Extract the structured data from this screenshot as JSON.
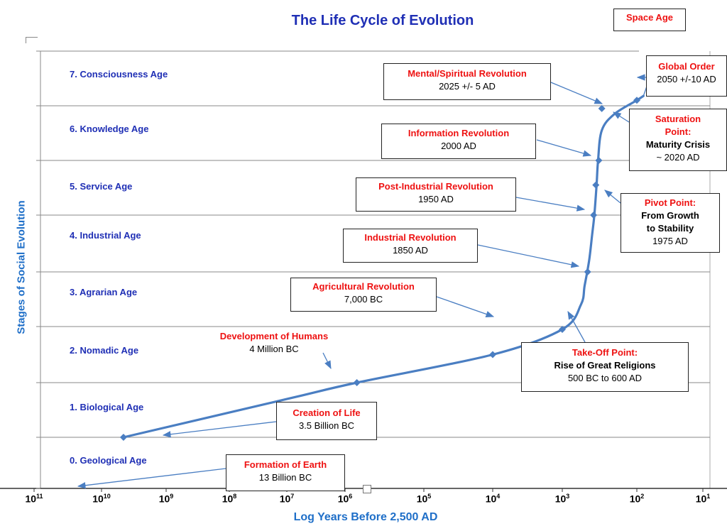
{
  "chart_data": {
    "type": "line",
    "title": "The Life Cycle of Evolution",
    "xlabel": "Log Years Before 2,500 AD",
    "ylabel": "Stages of Social Evolution",
    "x_scale": "log, reversed",
    "xlim_log10": [
      11,
      1
    ],
    "ylim": [
      0,
      7.6
    ],
    "x_ticks": [
      {
        "base": "10",
        "exp": "11"
      },
      {
        "base": "10",
        "exp": "10"
      },
      {
        "base": "10",
        "exp": "9"
      },
      {
        "base": "10",
        "exp": "8"
      },
      {
        "base": "10",
        "exp": "7"
      },
      {
        "base": "10",
        "exp": "6"
      },
      {
        "base": "10",
        "exp": "5"
      },
      {
        "base": "10",
        "exp": "4"
      },
      {
        "base": "10",
        "exp": "3"
      },
      {
        "base": "10",
        "exp": "2"
      },
      {
        "base": "10",
        "exp": "1"
      }
    ],
    "stages": [
      "0. Geological Age",
      "1. Biological Age",
      "2. Nomadic Age",
      "3. Agrarian Age",
      "4. Industrial Age",
      "5. Service Age",
      "6. Knowledge Age",
      "7. Consciousness Age"
    ],
    "curve_log_x": [
      9.66,
      7.0,
      5.85,
      4.0,
      3.0,
      2.75,
      2.7,
      2.64,
      2.6,
      2.57,
      2.54,
      2.52,
      2.47,
      2.3,
      2.0,
      1.9
    ],
    "curve_y": [
      1.0,
      1.7,
      2.0,
      2.5,
      2.95,
      3.4,
      3.75,
      4.2,
      4.65,
      5.0,
      5.55,
      6.0,
      6.55,
      6.85,
      7.1,
      7.18
    ],
    "markers_log_x": [
      9.66,
      5.85,
      4.0,
      3.0,
      2.66,
      2.58,
      2.55,
      2.51,
      2.47,
      2.0
    ],
    "markers_y": [
      1.0,
      2.0,
      2.5,
      2.95,
      4.0,
      5.0,
      5.55,
      6.0,
      6.95,
      7.1
    ],
    "space_age_arrow_log_x": [
      1.9,
      1.75
    ],
    "space_age_arrow_y": [
      7.18,
      7.7
    ]
  },
  "annotations": {
    "space_age": "Space Age",
    "global_order": {
      "head": "Global Order",
      "body": "2050 +/-10 AD"
    },
    "mental": {
      "head": "Mental/Spiritual Revolution",
      "body": "2025 +/- 5 AD"
    },
    "saturation": {
      "head1": "Saturation",
      "head2": "Point:",
      "body1": "Maturity Crisis",
      "body2": "~ 2020 AD"
    },
    "information": {
      "head": "Information Revolution",
      "body": "2000 AD"
    },
    "post_industrial": {
      "head": "Post-Industrial Revolution",
      "body": "1950 AD"
    },
    "pivot": {
      "head": "Pivot Point:",
      "body1": "From Growth",
      "body2": "to Stability",
      "body3": "1975 AD"
    },
    "industrial": {
      "head": "Industrial Revolution",
      "body": "1850 AD"
    },
    "agricultural": {
      "head": "Agricultural Revolution",
      "body": "7,000 BC"
    },
    "takeoff": {
      "head": "Take-Off Point:",
      "body1": "Rise of Great Religions",
      "body2": "500 BC to 600 AD"
    },
    "humans": {
      "head": "Development of Humans",
      "body": "4 Million BC"
    },
    "life": {
      "head": "Creation of Life",
      "body": "3.5 Billion BC"
    },
    "earth": {
      "head": "Formation of Earth",
      "body": "13 Billion BC"
    }
  },
  "colors": {
    "curve": "#4a7ec2",
    "arrow": "#4a7ec2",
    "title": "#1f2fb5",
    "stage_text": "#1f2fb5",
    "axis_label": "#1f6fc8",
    "highlight": "#ee1111",
    "grid": "#888888"
  }
}
